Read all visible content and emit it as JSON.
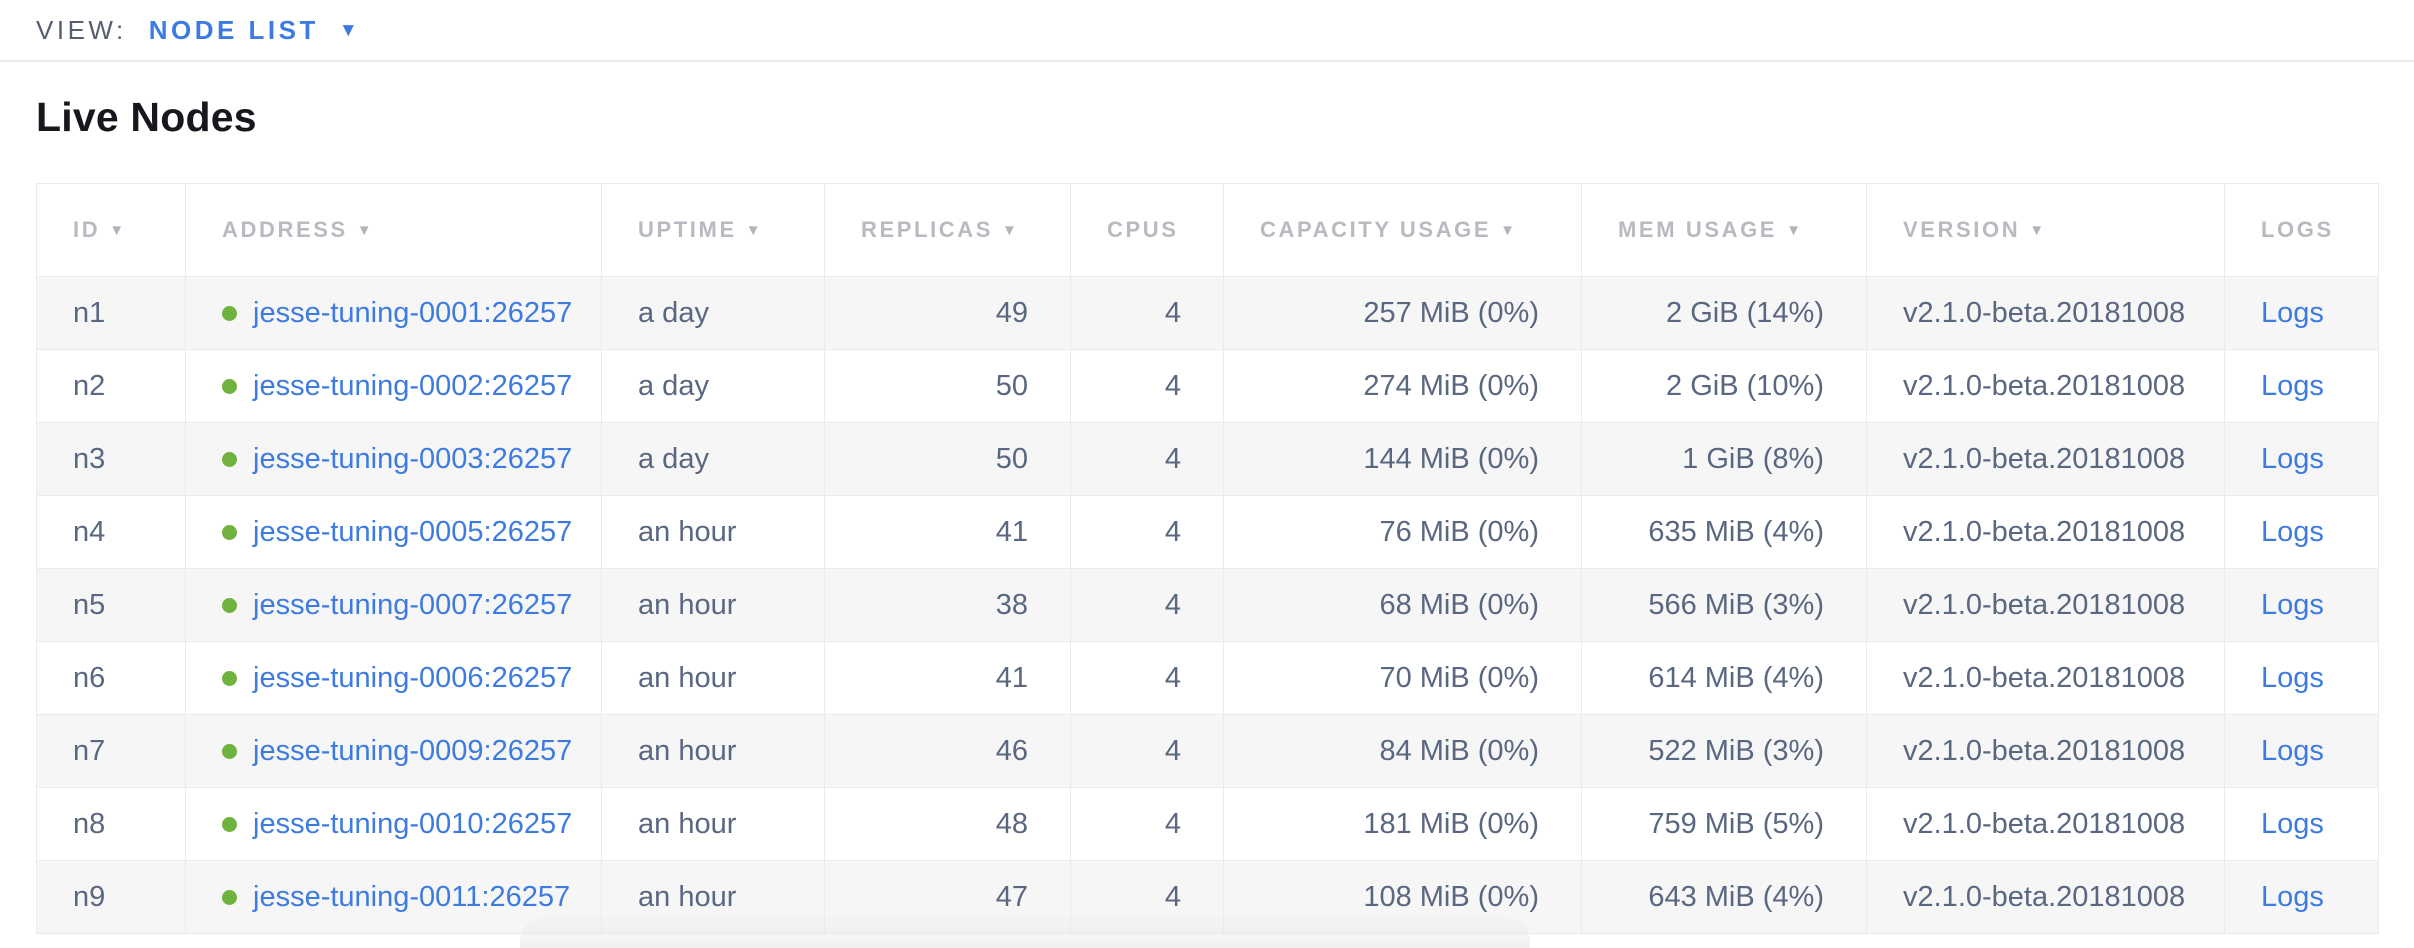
{
  "view_bar": {
    "label": "VIEW:",
    "selected": "NODE LIST"
  },
  "icons": {
    "caret_down": "▼",
    "sort_arrow": "▼"
  },
  "page": {
    "title": "Live Nodes"
  },
  "colors": {
    "link_blue": "#3d7be0",
    "healthy_green": "#70b23e",
    "header_gray": "#b8bac1",
    "text_slate": "#5a6780",
    "row_stripe": "#f6f6f7",
    "border": "#ebebed"
  },
  "table": {
    "columns": [
      {
        "label": "ID",
        "sortable": true
      },
      {
        "label": "ADDRESS",
        "sortable": true
      },
      {
        "label": "UPTIME",
        "sortable": true
      },
      {
        "label": "REPLICAS",
        "sortable": true
      },
      {
        "label": "CPUS",
        "sortable": false
      },
      {
        "label": "CAPACITY USAGE",
        "sortable": true
      },
      {
        "label": "MEM USAGE",
        "sortable": true
      },
      {
        "label": "VERSION",
        "sortable": true
      },
      {
        "label": "LOGS",
        "sortable": false
      }
    ],
    "rows": [
      {
        "id": "n1",
        "address": "jesse-tuning-0001:26257",
        "uptime": "a day",
        "replicas": "49",
        "cpus": "4",
        "capacity_usage": "257 MiB (0%)",
        "mem_usage": "2 GiB (14%)",
        "version": "v2.1.0-beta.20181008",
        "logs": "Logs"
      },
      {
        "id": "n2",
        "address": "jesse-tuning-0002:26257",
        "uptime": "a day",
        "replicas": "50",
        "cpus": "4",
        "capacity_usage": "274 MiB (0%)",
        "mem_usage": "2 GiB (10%)",
        "version": "v2.1.0-beta.20181008",
        "logs": "Logs"
      },
      {
        "id": "n3",
        "address": "jesse-tuning-0003:26257",
        "uptime": "a day",
        "replicas": "50",
        "cpus": "4",
        "capacity_usage": "144 MiB (0%)",
        "mem_usage": "1 GiB (8%)",
        "version": "v2.1.0-beta.20181008",
        "logs": "Logs"
      },
      {
        "id": "n4",
        "address": "jesse-tuning-0005:26257",
        "uptime": "an hour",
        "replicas": "41",
        "cpus": "4",
        "capacity_usage": "76 MiB (0%)",
        "mem_usage": "635 MiB (4%)",
        "version": "v2.1.0-beta.20181008",
        "logs": "Logs"
      },
      {
        "id": "n5",
        "address": "jesse-tuning-0007:26257",
        "uptime": "an hour",
        "replicas": "38",
        "cpus": "4",
        "capacity_usage": "68 MiB (0%)",
        "mem_usage": "566 MiB (3%)",
        "version": "v2.1.0-beta.20181008",
        "logs": "Logs"
      },
      {
        "id": "n6",
        "address": "jesse-tuning-0006:26257",
        "uptime": "an hour",
        "replicas": "41",
        "cpus": "4",
        "capacity_usage": "70 MiB (0%)",
        "mem_usage": "614 MiB (4%)",
        "version": "v2.1.0-beta.20181008",
        "logs": "Logs"
      },
      {
        "id": "n7",
        "address": "jesse-tuning-0009:26257",
        "uptime": "an hour",
        "replicas": "46",
        "cpus": "4",
        "capacity_usage": "84 MiB (0%)",
        "mem_usage": "522 MiB (3%)",
        "version": "v2.1.0-beta.20181008",
        "logs": "Logs"
      },
      {
        "id": "n8",
        "address": "jesse-tuning-0010:26257",
        "uptime": "an hour",
        "replicas": "48",
        "cpus": "4",
        "capacity_usage": "181 MiB (0%)",
        "mem_usage": "759 MiB (5%)",
        "version": "v2.1.0-beta.20181008",
        "logs": "Logs"
      },
      {
        "id": "n9",
        "address": "jesse-tuning-0011:26257",
        "uptime": "an hour",
        "replicas": "47",
        "cpus": "4",
        "capacity_usage": "108 MiB (0%)",
        "mem_usage": "643 MiB (4%)",
        "version": "v2.1.0-beta.20181008",
        "logs": "Logs"
      }
    ]
  }
}
